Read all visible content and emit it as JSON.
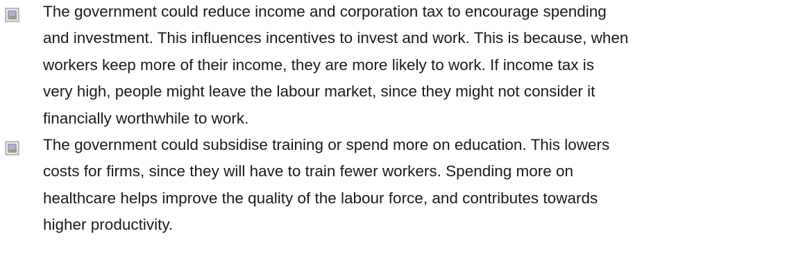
{
  "items": [
    {
      "lines": [
        "The government could reduce income and corporation tax to encourage spending",
        "and investment. This influences incentives to invest and work. This is because, when",
        "workers keep more of their income, they are more likely to work. If income tax is",
        "very high, people might leave the labour market, since they might not consider it",
        "financially worthwhile to work."
      ]
    },
    {
      "lines": [
        "The government could subsidise training or spend more on education. This lowers",
        "costs for firms, since they will have to train fewer workers. Spending more on",
        "healthcare helps improve the quality of the labour force, and contributes towards",
        "higher productivity."
      ]
    }
  ]
}
